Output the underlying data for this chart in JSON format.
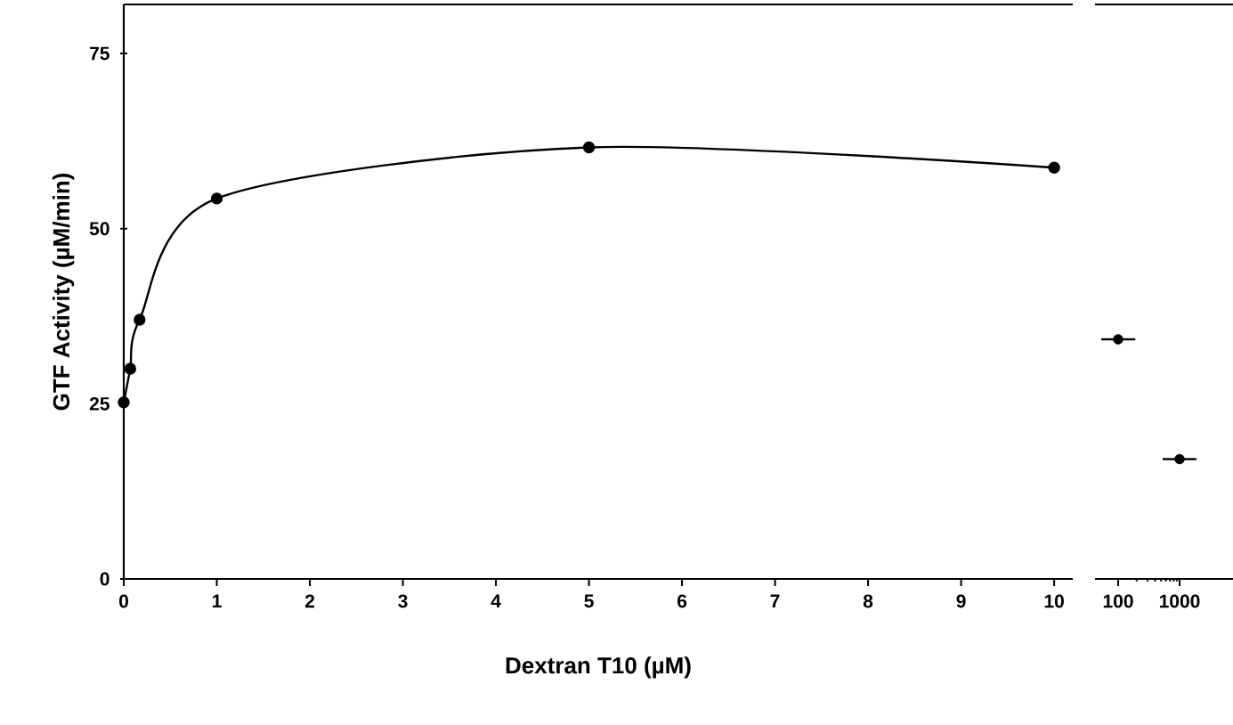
{
  "chart_data": [
    {
      "type": "line",
      "xlabel": "Dextran T10 (µM)",
      "ylabel": "GTF Activity (µM/min)",
      "x": [
        0,
        0.07,
        0.17,
        1,
        5,
        10
      ],
      "values": [
        25.2,
        30.0,
        37.0,
        54.3,
        61.6,
        58.7
      ],
      "color": "#000000",
      "marker": "circle",
      "xlim": [
        0,
        10.2
      ],
      "ylim": [
        0,
        82
      ],
      "xticks": [
        0,
        1,
        2,
        3,
        4,
        5,
        6,
        7,
        8,
        9,
        10
      ],
      "yticks": [
        0,
        25,
        50,
        75
      ]
    },
    {
      "type": "scatter",
      "x": [
        100,
        1000
      ],
      "values": [
        34.2,
        17.1
      ],
      "xerrors": [
        [
          53,
          190
        ],
        [
          530,
          1880
        ]
      ],
      "color": "#000000",
      "marker": "circle",
      "log": "x",
      "xlim": [
        42,
        7400
      ],
      "ylim": [
        0,
        82
      ],
      "xticks": [
        100,
        1000
      ],
      "tick_labels": "x"
    }
  ]
}
